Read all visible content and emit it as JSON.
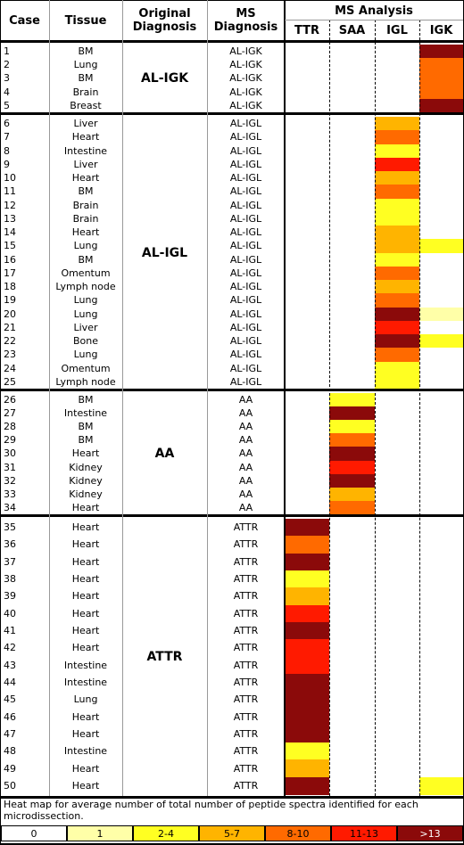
{
  "header": {
    "case": "Case",
    "tissue": "Tissue",
    "original": "Original Diagnosis",
    "ms": "MS Diagnosis",
    "analysis": "MS Analysis",
    "markers": [
      "TTR",
      "SAA",
      "IGL",
      "IGK"
    ]
  },
  "groups": [
    {
      "diagnosis": "AL-IGK",
      "rows": [
        {
          "case": 1,
          "tissue": "BM",
          "ms": "AL-IGK",
          "heat": [
            0,
            0,
            0,
            6
          ]
        },
        {
          "case": 2,
          "tissue": "Lung",
          "ms": "AL-IGK",
          "heat": [
            0,
            0,
            0,
            4
          ]
        },
        {
          "case": 3,
          "tissue": "BM",
          "ms": "AL-IGK",
          "heat": [
            0,
            0,
            0,
            4
          ]
        },
        {
          "case": 4,
          "tissue": "Brain",
          "ms": "AL-IGK",
          "heat": [
            0,
            0,
            0,
            4
          ]
        },
        {
          "case": 5,
          "tissue": "Breast",
          "ms": "AL-IGK",
          "heat": [
            0,
            0,
            0,
            6
          ]
        }
      ]
    },
    {
      "diagnosis": "AL-IGL",
      "rows": [
        {
          "case": 6,
          "tissue": "Liver",
          "ms": "AL-IGL",
          "heat": [
            0,
            0,
            3,
            0
          ]
        },
        {
          "case": 7,
          "tissue": "Heart",
          "ms": "AL-IGL",
          "heat": [
            0,
            0,
            4,
            0
          ]
        },
        {
          "case": 8,
          "tissue": "Intestine",
          "ms": "AL-IGL",
          "heat": [
            0,
            0,
            2,
            0
          ]
        },
        {
          "case": 9,
          "tissue": "Liver",
          "ms": "AL-IGL",
          "heat": [
            0,
            0,
            5,
            0
          ]
        },
        {
          "case": 10,
          "tissue": "Heart",
          "ms": "AL-IGL",
          "heat": [
            0,
            0,
            3,
            0
          ]
        },
        {
          "case": 11,
          "tissue": "BM",
          "ms": "AL-IGL",
          "heat": [
            0,
            0,
            4,
            0
          ]
        },
        {
          "case": 12,
          "tissue": "Brain",
          "ms": "AL-IGL",
          "heat": [
            0,
            0,
            2,
            0
          ]
        },
        {
          "case": 13,
          "tissue": "Brain",
          "ms": "AL-IGL",
          "heat": [
            0,
            0,
            2,
            0
          ]
        },
        {
          "case": 14,
          "tissue": "Heart",
          "ms": "AL-IGL",
          "heat": [
            0,
            0,
            3,
            0
          ]
        },
        {
          "case": 15,
          "tissue": "Lung",
          "ms": "AL-IGL",
          "heat": [
            0,
            0,
            3,
            2
          ]
        },
        {
          "case": 16,
          "tissue": "BM",
          "ms": "AL-IGL",
          "heat": [
            0,
            0,
            2,
            0
          ]
        },
        {
          "case": 17,
          "tissue": "Omentum",
          "ms": "AL-IGL",
          "heat": [
            0,
            0,
            4,
            0
          ]
        },
        {
          "case": 18,
          "tissue": "Lymph node",
          "ms": "AL-IGL",
          "heat": [
            0,
            0,
            3,
            0
          ]
        },
        {
          "case": 19,
          "tissue": "Lung",
          "ms": "AL-IGL",
          "heat": [
            0,
            0,
            4,
            0
          ]
        },
        {
          "case": 20,
          "tissue": "Lung",
          "ms": "AL-IGL",
          "heat": [
            0,
            0,
            6,
            1
          ]
        },
        {
          "case": 21,
          "tissue": "Liver",
          "ms": "AL-IGL",
          "heat": [
            0,
            0,
            5,
            0
          ]
        },
        {
          "case": 22,
          "tissue": "Bone",
          "ms": "AL-IGL",
          "heat": [
            0,
            0,
            6,
            2
          ]
        },
        {
          "case": 23,
          "tissue": "Lung",
          "ms": "AL-IGL",
          "heat": [
            0,
            0,
            4,
            0
          ]
        },
        {
          "case": 24,
          "tissue": "Omentum",
          "ms": "AL-IGL",
          "heat": [
            0,
            0,
            2,
            0
          ]
        },
        {
          "case": 25,
          "tissue": "Lymph node",
          "ms": "AL-IGL",
          "heat": [
            0,
            0,
            2,
            0
          ]
        }
      ]
    },
    {
      "diagnosis": "AA",
      "rows": [
        {
          "case": 26,
          "tissue": "BM",
          "ms": "AA",
          "heat": [
            0,
            2,
            0,
            0
          ]
        },
        {
          "case": 27,
          "tissue": "Intestine",
          "ms": "AA",
          "heat": [
            0,
            6,
            0,
            0
          ]
        },
        {
          "case": 28,
          "tissue": "BM",
          "ms": "AA",
          "heat": [
            0,
            2,
            0,
            0
          ]
        },
        {
          "case": 29,
          "tissue": "BM",
          "ms": "AA",
          "heat": [
            0,
            4,
            0,
            0
          ]
        },
        {
          "case": 30,
          "tissue": "Heart",
          "ms": "AA",
          "heat": [
            0,
            6,
            0,
            0
          ]
        },
        {
          "case": 31,
          "tissue": "Kidney",
          "ms": "AA",
          "heat": [
            0,
            5,
            0,
            0
          ]
        },
        {
          "case": 32,
          "tissue": "Kidney",
          "ms": "AA",
          "heat": [
            0,
            6,
            0,
            0
          ]
        },
        {
          "case": 33,
          "tissue": "Kidney",
          "ms": "AA",
          "heat": [
            0,
            3,
            0,
            0
          ]
        },
        {
          "case": 34,
          "tissue": "Heart",
          "ms": "AA",
          "heat": [
            0,
            4,
            0,
            0
          ]
        }
      ]
    },
    {
      "diagnosis": "ATTR",
      "rows": [
        {
          "case": 35,
          "tissue": "Heart",
          "ms": "ATTR",
          "heat": [
            6,
            0,
            0,
            0
          ]
        },
        {
          "case": 36,
          "tissue": "Heart",
          "ms": "ATTR",
          "heat": [
            4,
            0,
            0,
            0
          ]
        },
        {
          "case": 37,
          "tissue": "Heart",
          "ms": "ATTR",
          "heat": [
            6,
            0,
            0,
            0
          ]
        },
        {
          "case": 38,
          "tissue": "Heart",
          "ms": "ATTR",
          "heat": [
            2,
            0,
            0,
            0
          ]
        },
        {
          "case": 39,
          "tissue": "Heart",
          "ms": "ATTR",
          "heat": [
            3,
            0,
            0,
            0
          ]
        },
        {
          "case": 40,
          "tissue": "Heart",
          "ms": "ATTR",
          "heat": [
            5,
            0,
            0,
            0
          ]
        },
        {
          "case": 41,
          "tissue": "Heart",
          "ms": "ATTR",
          "heat": [
            6,
            0,
            0,
            0
          ]
        },
        {
          "case": 42,
          "tissue": "Heart",
          "ms": "ATTR",
          "heat": [
            5,
            0,
            0,
            0
          ]
        },
        {
          "case": 43,
          "tissue": "Intestine",
          "ms": "ATTR",
          "heat": [
            5,
            0,
            0,
            0
          ]
        },
        {
          "case": 44,
          "tissue": "Intestine",
          "ms": "ATTR",
          "heat": [
            6,
            0,
            0,
            0
          ]
        },
        {
          "case": 45,
          "tissue": "Lung",
          "ms": "ATTR",
          "heat": [
            6,
            0,
            0,
            0
          ]
        },
        {
          "case": 46,
          "tissue": "Heart",
          "ms": "ATTR",
          "heat": [
            6,
            0,
            0,
            0
          ]
        },
        {
          "case": 47,
          "tissue": "Heart",
          "ms": "ATTR",
          "heat": [
            6,
            0,
            0,
            0
          ]
        },
        {
          "case": 48,
          "tissue": "Intestine",
          "ms": "ATTR",
          "heat": [
            2,
            0,
            0,
            0
          ]
        },
        {
          "case": 49,
          "tissue": "Heart",
          "ms": "ATTR",
          "heat": [
            3,
            0,
            0,
            0
          ]
        },
        {
          "case": 50,
          "tissue": "Heart",
          "ms": "ATTR",
          "heat": [
            6,
            0,
            0,
            2
          ]
        }
      ]
    }
  ],
  "legend": {
    "caption": "Heat map for average number of total number of peptide spectra identified for each microdissection.",
    "bins": [
      {
        "label": "0",
        "color": "#ffffff"
      },
      {
        "label": "1",
        "color": "#ffffa8"
      },
      {
        "label": "2-4",
        "color": "#ffff22"
      },
      {
        "label": "5-7",
        "color": "#ffb400"
      },
      {
        "label": "8-10",
        "color": "#ff6a00"
      },
      {
        "label": "11-13",
        "color": "#ff1a00"
      },
      {
        "label": ">13",
        "color": "#8b0a0a"
      }
    ]
  }
}
